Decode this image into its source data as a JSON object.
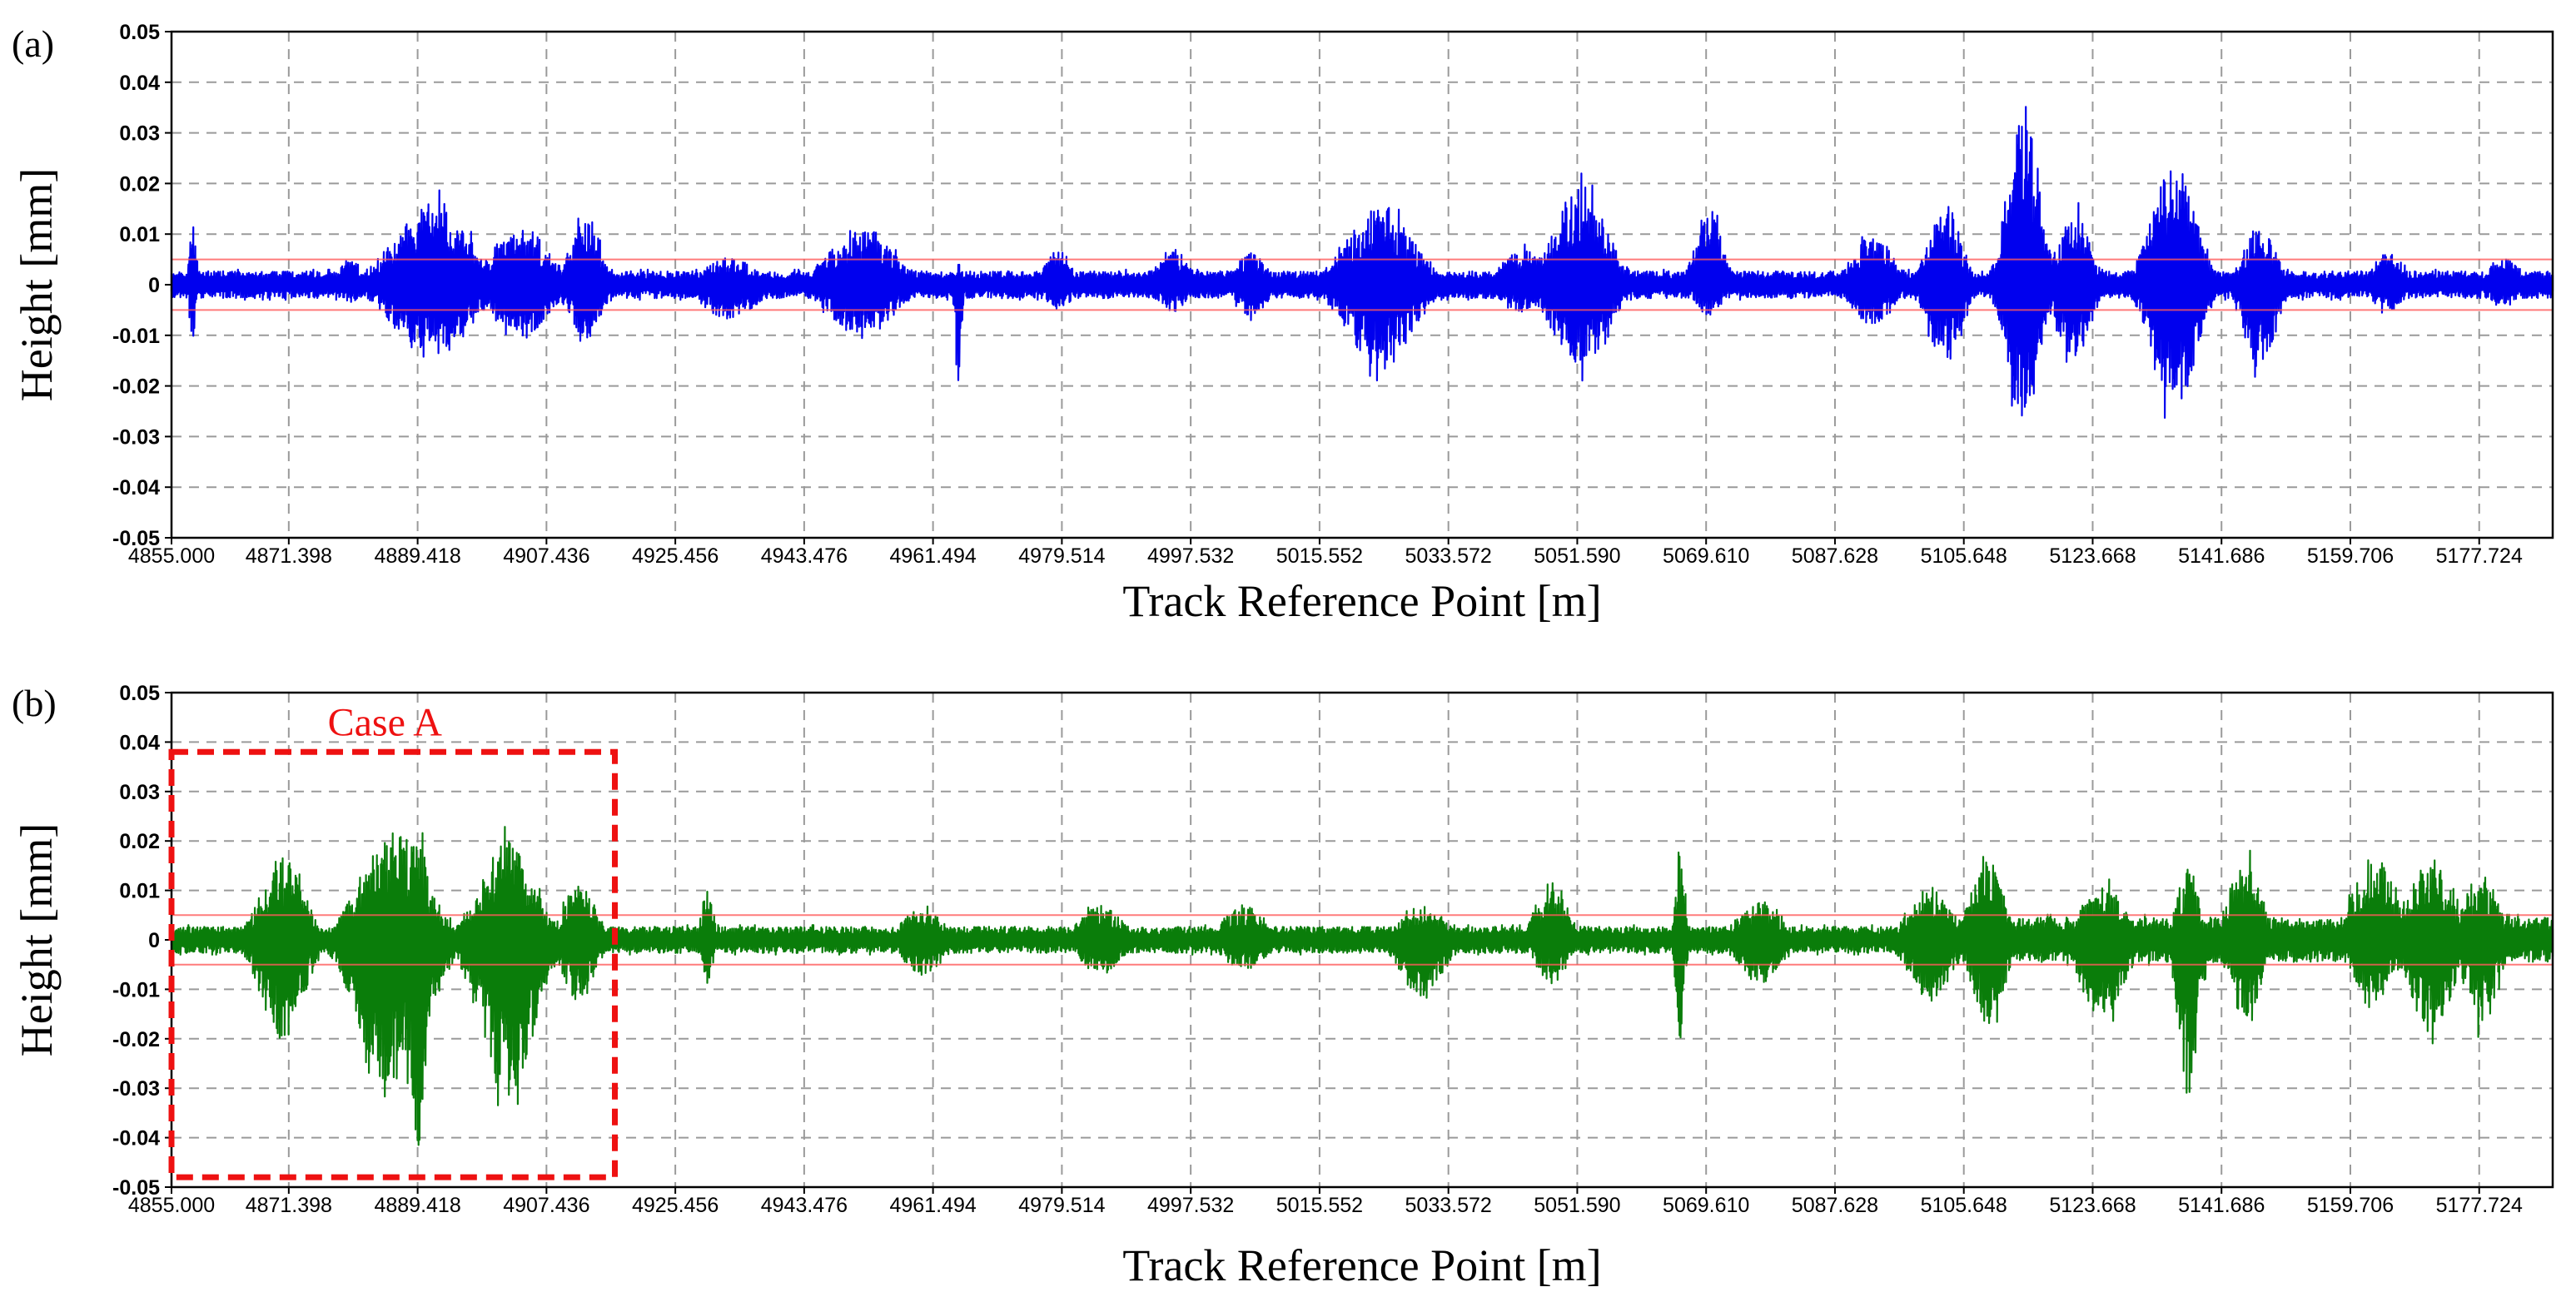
{
  "chart_data": [
    {
      "type": "line",
      "panel_label": "(a)",
      "title": "",
      "xlabel": "Track Reference Point [m]",
      "ylabel": "Height [mm]",
      "xlim": [
        4855.0,
        5188.0
      ],
      "ylim": [
        -0.05,
        0.05
      ],
      "x_ticks": [
        "4855.000",
        "4871.398",
        "4889.418",
        "4907.436",
        "4925.456",
        "4943.476",
        "4961.494",
        "4979.514",
        "4997.532",
        "5015.552",
        "5033.572",
        "5051.590",
        "5069.610",
        "5087.628",
        "5105.648",
        "5123.668",
        "5141.686",
        "5159.706",
        "5177.724"
      ],
      "y_ticks": [
        "0.05",
        "0.04",
        "0.03",
        "0.02",
        "0.01",
        "0",
        "-0.01",
        "-0.02",
        "-0.03",
        "-0.04",
        "-0.05"
      ],
      "grid": true,
      "threshold_lines": [
        0.005,
        -0.005
      ],
      "threshold_color": "#ff5a5a",
      "baseline_amplitude": 0.003,
      "series": [
        {
          "color": "#0000ee",
          "bursts": [
            {
              "x": 4858.0,
              "up": 0.016,
              "down": -0.013,
              "width": 0.6
            },
            {
              "x": 4880.0,
              "up": 0.006,
              "down": -0.004,
              "width": 2.0
            },
            {
              "x": 4891.5,
              "up": 0.019,
              "down": -0.017,
              "width": 7.0
            },
            {
              "x": 4904.0,
              "up": 0.013,
              "down": -0.012,
              "width": 5.0
            },
            {
              "x": 4913.0,
              "up": 0.015,
              "down": -0.012,
              "width": 3.0
            },
            {
              "x": 4933.0,
              "up": 0.006,
              "down": -0.008,
              "width": 5.0
            },
            {
              "x": 4951.5,
              "up": 0.013,
              "down": -0.012,
              "width": 6.0
            },
            {
              "x": 4965.0,
              "up": 0.006,
              "down": -0.022,
              "width": 0.6
            },
            {
              "x": 4979.0,
              "up": 0.008,
              "down": -0.006,
              "width": 2.5
            },
            {
              "x": 4995.0,
              "up": 0.008,
              "down": -0.006,
              "width": 3.0
            },
            {
              "x": 5006.0,
              "up": 0.007,
              "down": -0.007,
              "width": 3.0
            },
            {
              "x": 5024.0,
              "up": 0.018,
              "down": -0.019,
              "width": 6.0
            },
            {
              "x": 5044.0,
              "up": 0.008,
              "down": -0.006,
              "width": 4.0
            },
            {
              "x": 5052.0,
              "up": 0.022,
              "down": -0.019,
              "width": 5.0
            },
            {
              "x": 5070.0,
              "up": 0.017,
              "down": -0.007,
              "width": 2.5
            },
            {
              "x": 5093.0,
              "up": 0.011,
              "down": -0.009,
              "width": 4.0
            },
            {
              "x": 5103.0,
              "up": 0.018,
              "down": -0.018,
              "width": 3.0
            },
            {
              "x": 5114.0,
              "up": 0.04,
              "down": -0.032,
              "width": 3.0
            },
            {
              "x": 5121.0,
              "up": 0.017,
              "down": -0.017,
              "width": 3.0
            },
            {
              "x": 5135.0,
              "up": 0.028,
              "down": -0.029,
              "width": 4.0
            },
            {
              "x": 5147.0,
              "up": 0.013,
              "down": -0.019,
              "width": 3.0
            },
            {
              "x": 5165.0,
              "up": 0.007,
              "down": -0.006,
              "width": 3.0
            },
            {
              "x": 5181.0,
              "up": 0.006,
              "down": -0.005,
              "width": 3.0
            }
          ]
        }
      ]
    },
    {
      "type": "line",
      "panel_label": "(b)",
      "title": "",
      "xlabel": "Track Reference Point [m]",
      "ylabel": "Height [mm]",
      "xlim": [
        4855.0,
        5188.0
      ],
      "ylim": [
        -0.05,
        0.05
      ],
      "x_ticks": [
        "4855.000",
        "4871.398",
        "4889.418",
        "4907.436",
        "4925.456",
        "4943.476",
        "4961.494",
        "4979.514",
        "4997.532",
        "5015.552",
        "5033.572",
        "5051.590",
        "5069.610",
        "5087.628",
        "5105.648",
        "5123.668",
        "5141.686",
        "5159.706",
        "5177.724"
      ],
      "y_ticks": [
        "0.05",
        "0.04",
        "0.03",
        "0.02",
        "0.01",
        "0",
        "-0.01",
        "-0.02",
        "-0.03",
        "-0.04",
        "-0.05"
      ],
      "grid": true,
      "threshold_lines": [
        0.005,
        -0.005
      ],
      "threshold_color": "#ff5a5a",
      "baseline_amplitude": 0.003,
      "annotation": {
        "label": "Case A",
        "color": "#ee1111",
        "x_range": [
          4855.0,
          4917.0
        ],
        "y_range": [
          -0.048,
          0.038
        ]
      },
      "series": [
        {
          "color": "#0a7d0a",
          "bursts": [
            {
              "x": 4870.5,
              "up": 0.019,
              "down": -0.023,
              "width": 4.0
            },
            {
              "x": 4886.0,
              "up": 0.026,
              "down": -0.037,
              "width": 6.0
            },
            {
              "x": 4889.5,
              "up": 0.031,
              "down": -0.047,
              "width": 1.5
            },
            {
              "x": 4902.0,
              "up": 0.023,
              "down": -0.036,
              "width": 5.0
            },
            {
              "x": 4912.0,
              "up": 0.013,
              "down": -0.014,
              "width": 3.0
            },
            {
              "x": 4930.0,
              "up": 0.013,
              "down": -0.01,
              "width": 1.0
            },
            {
              "x": 4960.0,
              "up": 0.007,
              "down": -0.008,
              "width": 4.0
            },
            {
              "x": 4985.0,
              "up": 0.008,
              "down": -0.008,
              "width": 4.0
            },
            {
              "x": 5005.0,
              "up": 0.008,
              "down": -0.007,
              "width": 4.0
            },
            {
              "x": 5030.0,
              "up": 0.008,
              "down": -0.014,
              "width": 4.0
            },
            {
              "x": 5048.0,
              "up": 0.014,
              "down": -0.01,
              "width": 3.0
            },
            {
              "x": 5066.0,
              "up": 0.024,
              "down": -0.023,
              "width": 0.8
            },
            {
              "x": 5077.0,
              "up": 0.009,
              "down": -0.01,
              "width": 4.0
            },
            {
              "x": 5101.0,
              "up": 0.012,
              "down": -0.014,
              "width": 4.0
            },
            {
              "x": 5109.0,
              "up": 0.02,
              "down": -0.02,
              "width": 3.0
            },
            {
              "x": 5125.0,
              "up": 0.013,
              "down": -0.019,
              "width": 4.0
            },
            {
              "x": 5137.0,
              "up": 0.017,
              "down": -0.035,
              "width": 2.0
            },
            {
              "x": 5145.0,
              "up": 0.019,
              "down": -0.018,
              "width": 3.0
            },
            {
              "x": 5163.0,
              "up": 0.019,
              "down": -0.014,
              "width": 4.0
            },
            {
              "x": 5171.0,
              "up": 0.019,
              "down": -0.021,
              "width": 4.0
            },
            {
              "x": 5178.0,
              "up": 0.016,
              "down": -0.02,
              "width": 3.0
            }
          ]
        }
      ]
    }
  ]
}
